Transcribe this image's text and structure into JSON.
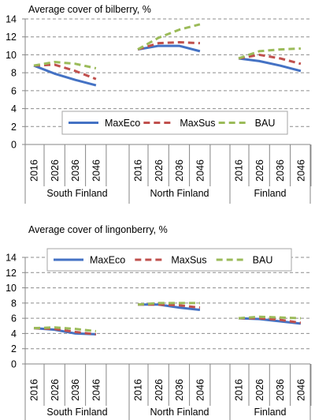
{
  "chart_data": [
    {
      "type": "line",
      "title": "Average cover of bilberry, %",
      "ylim": [
        0,
        14
      ],
      "yticks": [
        0,
        2,
        4,
        6,
        8,
        10,
        12,
        14
      ],
      "grid": true,
      "legend_position": "lower-middle",
      "x_groups": [
        {
          "name": "South Finland",
          "years": [
            "2016",
            "2026",
            "2036",
            "2046"
          ]
        },
        {
          "name": "North Finland",
          "years": [
            "2016",
            "2026",
            "2036",
            "2046"
          ]
        },
        {
          "name": "Finland",
          "years": [
            "2016",
            "2026",
            "2036",
            "2046"
          ]
        }
      ],
      "series": [
        {
          "name": "MaxEco",
          "color": "#4472C4",
          "dash": "solid",
          "values": [
            [
              8.8,
              7.9,
              7.2,
              6.6
            ],
            [
              10.6,
              11.0,
              11.0,
              10.4
            ],
            [
              9.6,
              9.3,
              8.8,
              8.2
            ]
          ]
        },
        {
          "name": "MaxSus",
          "color": "#C0504D",
          "dash": "dashed",
          "values": [
            [
              8.8,
              8.9,
              8.2,
              7.3
            ],
            [
              10.6,
              11.3,
              11.4,
              11.3
            ],
            [
              9.6,
              10.0,
              9.6,
              9.0
            ]
          ]
        },
        {
          "name": "BAU",
          "color": "#9BBB59",
          "dash": "dashed",
          "values": [
            [
              8.8,
              9.2,
              9.0,
              8.5
            ],
            [
              10.6,
              11.9,
              12.8,
              13.4
            ],
            [
              9.6,
              10.4,
              10.6,
              10.7
            ]
          ]
        }
      ]
    },
    {
      "type": "line",
      "title": "Average cover of lingonberry, %",
      "ylim": [
        0,
        14
      ],
      "yticks": [
        0,
        2,
        4,
        6,
        8,
        10,
        12,
        14
      ],
      "grid": true,
      "legend_position": "upper-middle",
      "x_groups": [
        {
          "name": "South Finland",
          "years": [
            "2016",
            "2026",
            "2036",
            "2046"
          ]
        },
        {
          "name": "North Finland",
          "years": [
            "2016",
            "2026",
            "2036",
            "2046"
          ]
        },
        {
          "name": "Finland",
          "years": [
            "2016",
            "2026",
            "2036",
            "2046"
          ]
        }
      ],
      "series": [
        {
          "name": "MaxEco",
          "color": "#4472C4",
          "dash": "solid",
          "values": [
            [
              4.7,
              4.5,
              4.0,
              3.9
            ],
            [
              7.8,
              7.8,
              7.4,
              7.1
            ],
            [
              6.0,
              5.9,
              5.6,
              5.3
            ]
          ]
        },
        {
          "name": "MaxSus",
          "color": "#C0504D",
          "dash": "dashed",
          "values": [
            [
              4.7,
              4.6,
              4.2,
              3.9
            ],
            [
              7.8,
              7.8,
              7.7,
              7.4
            ],
            [
              6.0,
              6.0,
              5.8,
              5.4
            ]
          ]
        },
        {
          "name": "BAU",
          "color": "#9BBB59",
          "dash": "dashed",
          "values": [
            [
              4.7,
              4.8,
              4.6,
              4.3
            ],
            [
              7.8,
              8.0,
              8.0,
              8.0
            ],
            [
              6.0,
              6.2,
              6.1,
              6.0
            ]
          ]
        }
      ]
    }
  ]
}
